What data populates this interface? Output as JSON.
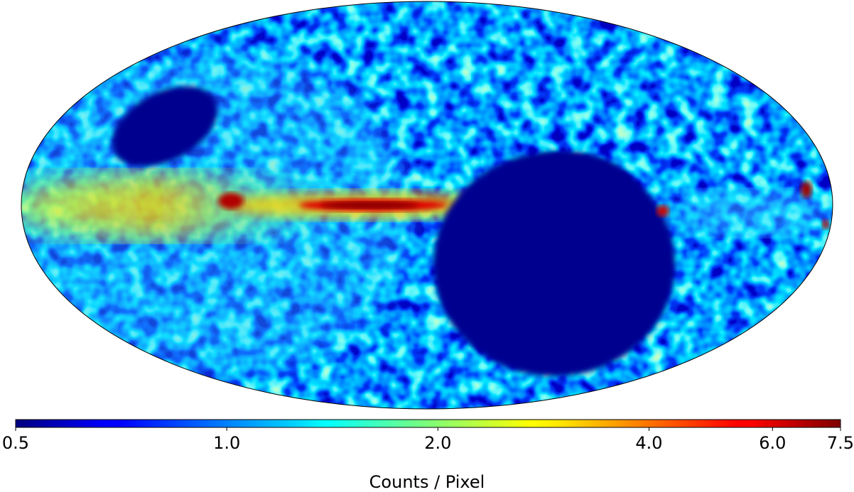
{
  "chart_data": {
    "type": "heatmap",
    "projection": "mollweide",
    "colormap": "jet",
    "colorbar": {
      "label": "Counts / Pixel",
      "lim": [
        0.5,
        7.5
      ],
      "scale": "log",
      "ticks": [
        0.5,
        {
          "value": 1,
          "label": "1.0"
        },
        {
          "value": 2,
          "label": "2.0"
        },
        {
          "value": 4,
          "label": "4.0"
        },
        {
          "value": 6,
          "label": "6.0"
        },
        7.5
      ]
    }
  }
}
